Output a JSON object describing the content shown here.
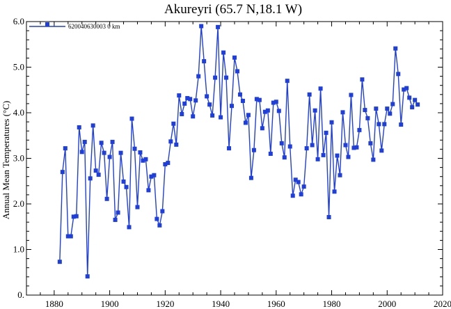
{
  "chart_data": {
    "type": "line",
    "title": "Akureyri (65.7 N,18.1 W)",
    "xlabel": "",
    "ylabel": "Annual Mean Temperatures (°C)",
    "xlim": [
      1870,
      2020
    ],
    "ylim": [
      0,
      6
    ],
    "x_ticks": [
      1880,
      1900,
      1920,
      1940,
      1960,
      1980,
      2000,
      2020
    ],
    "x_tick_labels": [
      "1880",
      "1900",
      "1920",
      "1940",
      "1960",
      "1980",
      "2000",
      "2020"
    ],
    "y_ticks": [
      0,
      1,
      2,
      3,
      4,
      5,
      6
    ],
    "y_tick_labels": [
      "0.",
      "1.0",
      "2.0",
      "3.0",
      "4.0",
      "5.0",
      "6.0"
    ],
    "grid": false,
    "legend_position": "top-left",
    "series": [
      {
        "name": "620040630003  0 km",
        "color": "#1f3fdd",
        "x": [
          1882,
          1883,
          1884,
          1885,
          1886,
          1887,
          1888,
          1889,
          1890,
          1891,
          1892,
          1893,
          1894,
          1895,
          1896,
          1897,
          1898,
          1899,
          1900,
          1901,
          1902,
          1903,
          1904,
          1905,
          1906,
          1907,
          1908,
          1909,
          1910,
          1911,
          1912,
          1913,
          1914,
          1915,
          1916,
          1917,
          1918,
          1919,
          1920,
          1921,
          1922,
          1923,
          1924,
          1925,
          1926,
          1927,
          1928,
          1929,
          1930,
          1931,
          1932,
          1933,
          1934,
          1935,
          1936,
          1937,
          1938,
          1939,
          1940,
          1941,
          1942,
          1943,
          1944,
          1945,
          1946,
          1947,
          1948,
          1949,
          1950,
          1951,
          1952,
          1953,
          1954,
          1955,
          1956,
          1957,
          1958,
          1959,
          1960,
          1961,
          1962,
          1963,
          1964,
          1965,
          1966,
          1967,
          1968,
          1969,
          1970,
          1971,
          1972,
          1973,
          1974,
          1975,
          1976,
          1977,
          1978,
          1979,
          1980,
          1981,
          1982,
          1983,
          1984,
          1985,
          1986,
          1987,
          1988,
          1989,
          1990,
          1991,
          1992,
          1993,
          1994,
          1995,
          1996,
          1997,
          1998,
          1999,
          2000,
          2001,
          2002,
          2003,
          2004,
          2005,
          2006,
          2007,
          2008,
          2009,
          2010,
          2011
        ],
        "y": [
          0.73,
          2.7,
          3.22,
          1.29,
          1.29,
          1.72,
          1.73,
          3.68,
          3.14,
          3.36,
          0.41,
          2.56,
          3.72,
          2.73,
          2.64,
          3.34,
          3.12,
          2.11,
          3.03,
          3.36,
          1.65,
          1.81,
          3.12,
          2.49,
          2.37,
          1.49,
          3.87,
          3.21,
          1.93,
          3.13,
          2.95,
          2.98,
          2.3,
          2.6,
          2.63,
          1.67,
          1.53,
          1.84,
          2.87,
          2.9,
          3.37,
          3.76,
          3.3,
          4.38,
          3.97,
          4.2,
          4.32,
          4.3,
          3.92,
          4.27,
          4.8,
          5.9,
          5.13,
          4.36,
          4.18,
          3.94,
          4.77,
          5.88,
          3.9,
          5.32,
          4.77,
          3.22,
          4.15,
          5.21,
          4.91,
          4.4,
          4.26,
          3.78,
          3.95,
          2.57,
          3.18,
          4.3,
          4.28,
          3.66,
          4.02,
          4.05,
          3.1,
          4.22,
          4.24,
          4.04,
          3.33,
          3.02,
          4.7,
          3.26,
          2.18,
          2.53,
          2.48,
          2.21,
          2.38,
          3.22,
          4.4,
          3.29,
          4.05,
          2.98,
          4.53,
          3.07,
          3.56,
          1.71,
          3.79,
          2.27,
          3.06,
          2.63,
          4.01,
          3.29,
          3.03,
          4.39,
          3.23,
          3.24,
          3.62,
          4.73,
          4.06,
          3.88,
          3.33,
          2.97,
          4.09,
          3.75,
          3.17,
          3.75,
          4.09,
          3.98,
          4.19,
          5.41,
          4.85,
          3.74,
          4.51,
          4.54,
          4.33,
          4.12,
          4.28,
          4.18
        ]
      }
    ]
  }
}
